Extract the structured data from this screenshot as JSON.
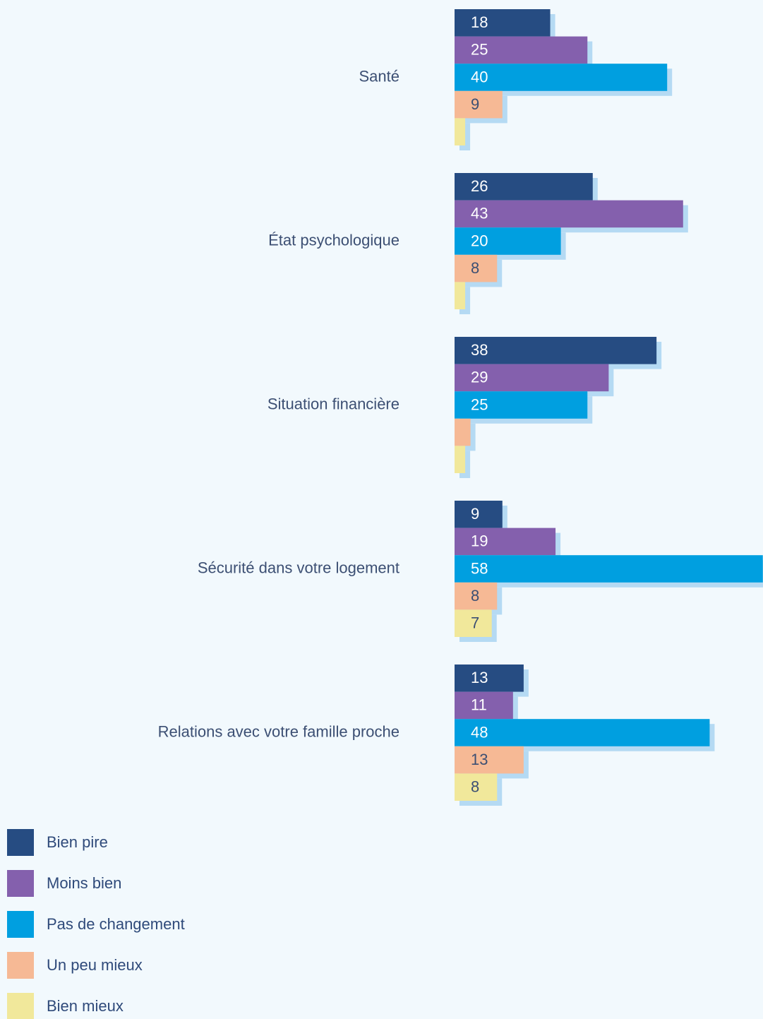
{
  "chart_data": {
    "type": "hbar",
    "categories": [
      "Santé",
      "État psychologique",
      "Situation financière",
      "Sécurité dans votre logement",
      "Relations avec votre famille proche"
    ],
    "series": [
      {
        "name": "Bien pire",
        "color": "#264c82",
        "label_color": "#ffffff",
        "values": [
          18,
          26,
          38,
          9,
          13
        ],
        "value_labels": [
          "18",
          "26",
          "38",
          "9",
          "13"
        ]
      },
      {
        "name": "Moins bien",
        "color": "#8460ad",
        "label_color": "#ffffff",
        "values": [
          25,
          43,
          29,
          19,
          11
        ],
        "value_labels": [
          "25",
          "43",
          "29",
          "19",
          "11"
        ]
      },
      {
        "name": "Pas de changement",
        "color": "#009fe0",
        "label_color": "#ffffff",
        "values": [
          40,
          20,
          25,
          58,
          48
        ],
        "value_labels": [
          "40",
          "20",
          "25",
          "58",
          "48"
        ]
      },
      {
        "name": "Un peu mieux",
        "color": "#f6b995",
        "label_color": "#3c4f73",
        "values": [
          9,
          8,
          3,
          8,
          13
        ],
        "value_labels": [
          "9",
          "8",
          null,
          "8",
          "13"
        ]
      },
      {
        "name": "Bien mieux",
        "color": "#f1e89b",
        "label_color": "#3c4f73",
        "values": [
          2,
          2,
          2,
          7,
          8
        ],
        "value_labels": [
          null,
          null,
          null,
          "7",
          "8"
        ]
      }
    ],
    "shadow_color": "#b5daf3"
  }
}
